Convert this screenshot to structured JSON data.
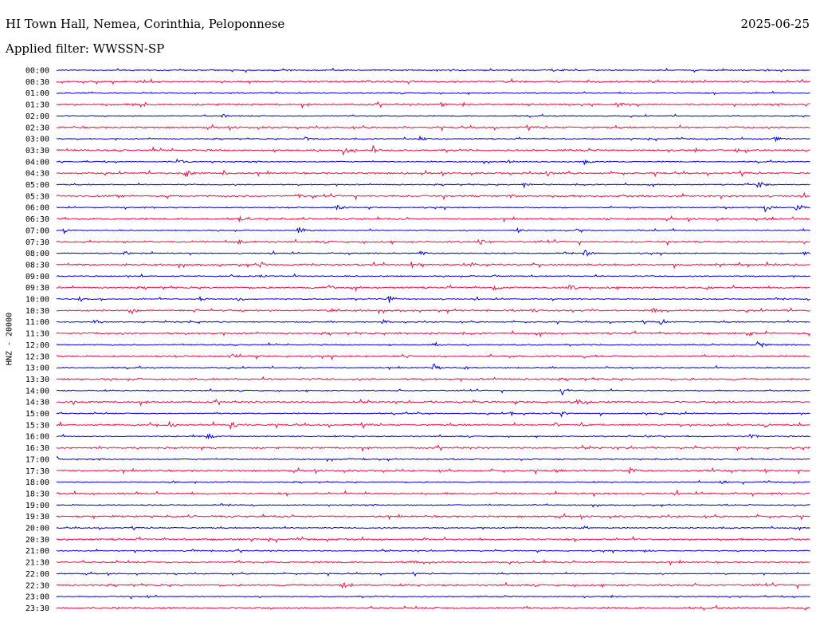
{
  "header": {
    "station": "HI Town Hall, Nemea, Corinthia, Peloponnese",
    "date": "2025-06-25",
    "filter": "Applied filter: WWSSN-SP"
  },
  "colors": {
    "odd_trace": "#0000dd",
    "even_trace": "#ee1144",
    "text": "#000000"
  },
  "chart_data": {
    "type": "line",
    "title": "HI Town Hall, Nemea, Corinthia, Peloponnese",
    "ylabel": "HNZ - 20000",
    "xlabel": "",
    "rows": [
      {
        "time": "00:00",
        "events": [
          [
            0.3,
            0.3
          ],
          [
            0.67,
            0.3
          ],
          [
            0.94,
            0.3
          ]
        ]
      },
      {
        "time": "00:30",
        "events": [
          [
            0.37,
            0.2
          ],
          [
            0.54,
            0.2
          ]
        ]
      },
      {
        "time": "01:00",
        "events": [
          [
            0.24,
            0.3
          ],
          [
            0.67,
            0.2
          ]
        ]
      },
      {
        "time": "01:30",
        "events": [
          [
            0.1,
            0.3
          ],
          [
            0.51,
            0.4
          ],
          [
            0.74,
            0.9
          ],
          [
            0.86,
            0.3
          ],
          [
            0.99,
            1.0
          ]
        ]
      },
      {
        "time": "02:00",
        "events": [
          [
            0.22,
            0.5
          ],
          [
            0.97,
            0.3
          ]
        ]
      },
      {
        "time": "02:30",
        "events": [
          [
            0.46,
            0.3
          ],
          [
            0.9,
            0.3
          ]
        ]
      },
      {
        "time": "03:00",
        "events": [
          [
            0.33,
            0.6
          ],
          [
            0.48,
            0.7
          ],
          [
            0.95,
            0.8
          ]
        ]
      },
      {
        "time": "03:30",
        "events": [
          [
            0.38,
            0.9
          ],
          [
            0.42,
            0.8
          ],
          [
            0.9,
            0.6
          ]
        ]
      },
      {
        "time": "04:00",
        "events": [
          [
            0.16,
            0.7
          ],
          [
            0.6,
            0.4
          ],
          [
            0.7,
            0.7
          ]
        ]
      },
      {
        "time": "04:30",
        "events": [
          [
            0.17,
            0.9
          ],
          [
            0.22,
            0.6
          ],
          [
            0.46,
            0.5
          ],
          [
            0.65,
            0.8
          ]
        ]
      },
      {
        "time": "05:00",
        "events": [
          [
            0.62,
            0.6
          ],
          [
            0.93,
            0.9
          ]
        ]
      },
      {
        "time": "05:30",
        "events": [
          [
            0.32,
            0.7
          ],
          [
            0.6,
            0.6
          ]
        ]
      },
      {
        "time": "06:00",
        "events": [
          [
            0.37,
            0.8
          ],
          [
            0.94,
            0.9
          ],
          [
            0.98,
            1.0
          ]
        ]
      },
      {
        "time": "06:30",
        "events": [
          [
            0.24,
            0.7
          ],
          [
            0.73,
            0.5
          ],
          [
            0.94,
            0.6
          ]
        ]
      },
      {
        "time": "07:00",
        "events": [
          [
            0.01,
            0.6
          ],
          [
            0.32,
            0.7
          ],
          [
            0.61,
            0.9
          ],
          [
            0.69,
            0.4
          ]
        ]
      },
      {
        "time": "07:30",
        "events": [
          [
            0.24,
            0.6
          ],
          [
            0.56,
            0.7
          ]
        ]
      },
      {
        "time": "08:00",
        "events": [
          [
            0.09,
            0.6
          ],
          [
            0.48,
            0.8
          ],
          [
            0.7,
            0.9
          ],
          [
            0.99,
            0.5
          ]
        ]
      },
      {
        "time": "08:30",
        "events": [
          [
            0.27,
            0.8
          ],
          [
            0.47,
            0.9
          ],
          [
            0.55,
            0.5
          ]
        ]
      },
      {
        "time": "09:00",
        "events": [
          [
            0.27,
            0.4
          ],
          [
            0.58,
            0.3
          ]
        ]
      },
      {
        "time": "09:30",
        "events": [
          [
            0.36,
            0.6
          ],
          [
            0.58,
            0.9
          ],
          [
            0.68,
            0.9
          ],
          [
            0.86,
            0.8
          ]
        ]
      },
      {
        "time": "10:00",
        "events": [
          [
            0.03,
            0.8
          ],
          [
            0.19,
            0.7
          ],
          [
            0.24,
            0.5
          ],
          [
            0.44,
            0.8
          ]
        ]
      },
      {
        "time": "10:30",
        "events": [
          [
            0.1,
            0.7
          ],
          [
            0.18,
            0.8
          ],
          [
            0.36,
            0.5
          ],
          [
            0.63,
            0.5
          ],
          [
            0.71,
            0.6
          ],
          [
            0.79,
            0.6
          ]
        ]
      },
      {
        "time": "11:00",
        "events": [
          [
            0.05,
            0.8
          ],
          [
            0.43,
            0.7
          ],
          [
            0.8,
            0.8
          ]
        ]
      },
      {
        "time": "11:30",
        "events": [
          [
            0.05,
            0.4
          ],
          [
            0.45,
            0.6
          ],
          [
            0.92,
            0.4
          ]
        ]
      },
      {
        "time": "12:00",
        "events": [
          [
            0.5,
            1.0
          ],
          [
            0.93,
            1.0
          ]
        ]
      },
      {
        "time": "12:30",
        "events": [
          [
            0.23,
            0.7
          ],
          [
            0.46,
            1.0
          ],
          [
            0.7,
            0.4
          ]
        ]
      },
      {
        "time": "13:00",
        "events": [
          [
            0.5,
            1.0
          ],
          [
            0.54,
            0.6
          ],
          [
            0.32,
            0.4
          ]
        ]
      },
      {
        "time": "13:30",
        "events": [
          [
            0.18,
            0.3
          ]
        ]
      },
      {
        "time": "14:00",
        "events": [
          [
            0.67,
            0.9
          ]
        ]
      },
      {
        "time": "14:30",
        "events": [
          [
            0.02,
            0.5
          ],
          [
            0.69,
            0.7
          ]
        ]
      },
      {
        "time": "15:00",
        "events": [
          [
            0.48,
            0.4
          ],
          [
            0.6,
            0.6
          ],
          [
            0.67,
            0.8
          ],
          [
            0.8,
            0.4
          ]
        ]
      },
      {
        "time": "15:30",
        "events": [
          [
            0.15,
            0.8
          ],
          [
            0.23,
            0.9
          ],
          [
            0.66,
            0.6
          ],
          [
            0.94,
            0.6
          ]
        ]
      },
      {
        "time": "16:00",
        "events": [
          [
            0.2,
            0.8
          ],
          [
            0.78,
            0.4
          ],
          [
            0.92,
            0.9
          ]
        ]
      },
      {
        "time": "16:30",
        "events": [
          [
            0.05,
            0.3
          ]
        ]
      },
      {
        "time": "17:00",
        "events": [
          [
            0.0,
            0.5
          ],
          [
            0.39,
            0.3
          ]
        ]
      },
      {
        "time": "17:30",
        "events": [
          [
            0.66,
            0.6
          ],
          [
            0.76,
            0.8
          ]
        ]
      },
      {
        "time": "18:00",
        "events": [
          [
            0.15,
            0.5
          ],
          [
            0.88,
            0.6
          ]
        ]
      },
      {
        "time": "18:30",
        "events": [
          [
            0.4,
            0.2
          ]
        ]
      },
      {
        "time": "19:00",
        "events": [
          [
            0.63,
            0.4
          ]
        ]
      },
      {
        "time": "19:30",
        "events": [
          [
            0.05,
            0.3
          ]
        ]
      },
      {
        "time": "20:00",
        "events": [
          [
            0.7,
            0.2
          ]
        ]
      },
      {
        "time": "20:30",
        "events": []
      },
      {
        "time": "21:00",
        "events": [
          [
            0.18,
            0.4
          ],
          [
            0.78,
            0.5
          ]
        ]
      },
      {
        "time": "21:30",
        "events": [
          [
            0.47,
            0.5
          ],
          [
            0.61,
            0.3
          ]
        ]
      },
      {
        "time": "22:00",
        "events": []
      },
      {
        "time": "22:30",
        "events": [
          [
            0.38,
            1.0
          ]
        ]
      },
      {
        "time": "23:00",
        "events": [
          [
            0.12,
            0.3
          ]
        ]
      },
      {
        "time": "23:30",
        "events": []
      }
    ]
  }
}
